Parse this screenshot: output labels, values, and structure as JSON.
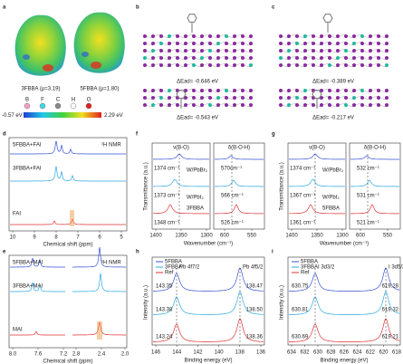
{
  "panels": {
    "a": {
      "label": "a",
      "molecules": [
        "3FBBA (μ=3.19)",
        "5FBBA (μ=1.80)"
      ],
      "atoms": [
        "B",
        "F",
        "C",
        "H",
        "O"
      ],
      "colorbar": [
        "-0.57 eV",
        "2.29 eV"
      ]
    },
    "b": {
      "label": "b",
      "energies": [
        "ΔEad= -0.646 eV",
        "ΔEad= -0.543 eV"
      ]
    },
    "c": {
      "label": "c",
      "energies": [
        "ΔEad= -0.389 eV",
        "ΔEad= -0.217 eV"
      ]
    },
    "d": {
      "label": "d",
      "traces": [
        "5FBBA+FAI",
        "3FBBA+FAI",
        "FAI"
      ],
      "nucleus": "¹H NMR",
      "xticks": [
        "10",
        "9",
        "8",
        "7",
        "6",
        "5"
      ],
      "xlabel": "Chemical shift (ppm)"
    },
    "e": {
      "label": "e",
      "traces": [
        "5FBBA+MAI",
        "3FBBA+MAI",
        "MAI"
      ],
      "nucleus": "¹H NMR",
      "xticks": [
        "8.0",
        "7.6",
        "7.2",
        "2.8",
        "2.4",
        "2.0"
      ],
      "xlabel": "Chemical shift (ppm)"
    },
    "f": {
      "label": "f",
      "modes": [
        "ν(B-O)",
        "δ(B-O-H)"
      ],
      "annotations": [
        "1374 cm⁻¹",
        "570cm⁻¹",
        "1373 cm⁻¹",
        "566 cm⁻¹",
        "1348 cm⁻¹",
        "526 cm⁻¹"
      ],
      "traces": [
        "W/PbBr₂",
        "W/PbI₂",
        "3FBBA"
      ],
      "xticks": [
        "1400",
        "1350",
        "1300",
        "600",
        "550"
      ],
      "xlabel": "Wavenumber (cm⁻¹)",
      "ylabel": "Transmittance (a.u.)"
    },
    "g": {
      "label": "g",
      "modes": [
        "ν(B-O)",
        "δ(B-O-H)"
      ],
      "annotations": [
        "1374 cm⁻¹",
        "532 cm⁻¹",
        "1367 cm⁻¹",
        "531 cm⁻¹",
        "1361 cm⁻¹",
        "521 cm⁻¹"
      ],
      "traces": [
        "W/PbBr₂",
        "W/PbI₂",
        "5FBBA"
      ],
      "xticks": [
        "1400",
        "1350",
        "1300",
        "600",
        "550"
      ],
      "xlabel": "Wavenumber (cm⁻¹)",
      "ylabel": "Transmittance (a.u.)"
    },
    "h": {
      "label": "h",
      "legend": [
        "5FBBA",
        "3FBBA",
        "Ref"
      ],
      "peaks": [
        "Pb 4f7/2",
        "Pb 4f5/2"
      ],
      "values": [
        "143.35",
        "138.47",
        "143.38",
        "138.50",
        "143.24",
        "138.36"
      ],
      "xticks": [
        "146",
        "144",
        "142",
        "140",
        "138",
        "136"
      ],
      "xlabel": "Binding energy (eV)",
      "ylabel": "Intensity (a.u.)"
    },
    "i": {
      "label": "i",
      "legend": [
        "5FBBA",
        "3FBBA",
        "Ref"
      ],
      "peaks": [
        "I 3d3/2",
        "I 3d5/2"
      ],
      "values": [
        "630.75",
        "619.28",
        "630.81",
        "619.32",
        "630.69",
        "619.21"
      ],
      "xticks": [
        "634",
        "632",
        "630",
        "628",
        "626",
        "624",
        "622",
        "620",
        "618"
      ],
      "xlabel": "Binding energy (eV)",
      "ylabel": "Intensity (a.u.)"
    }
  }
}
